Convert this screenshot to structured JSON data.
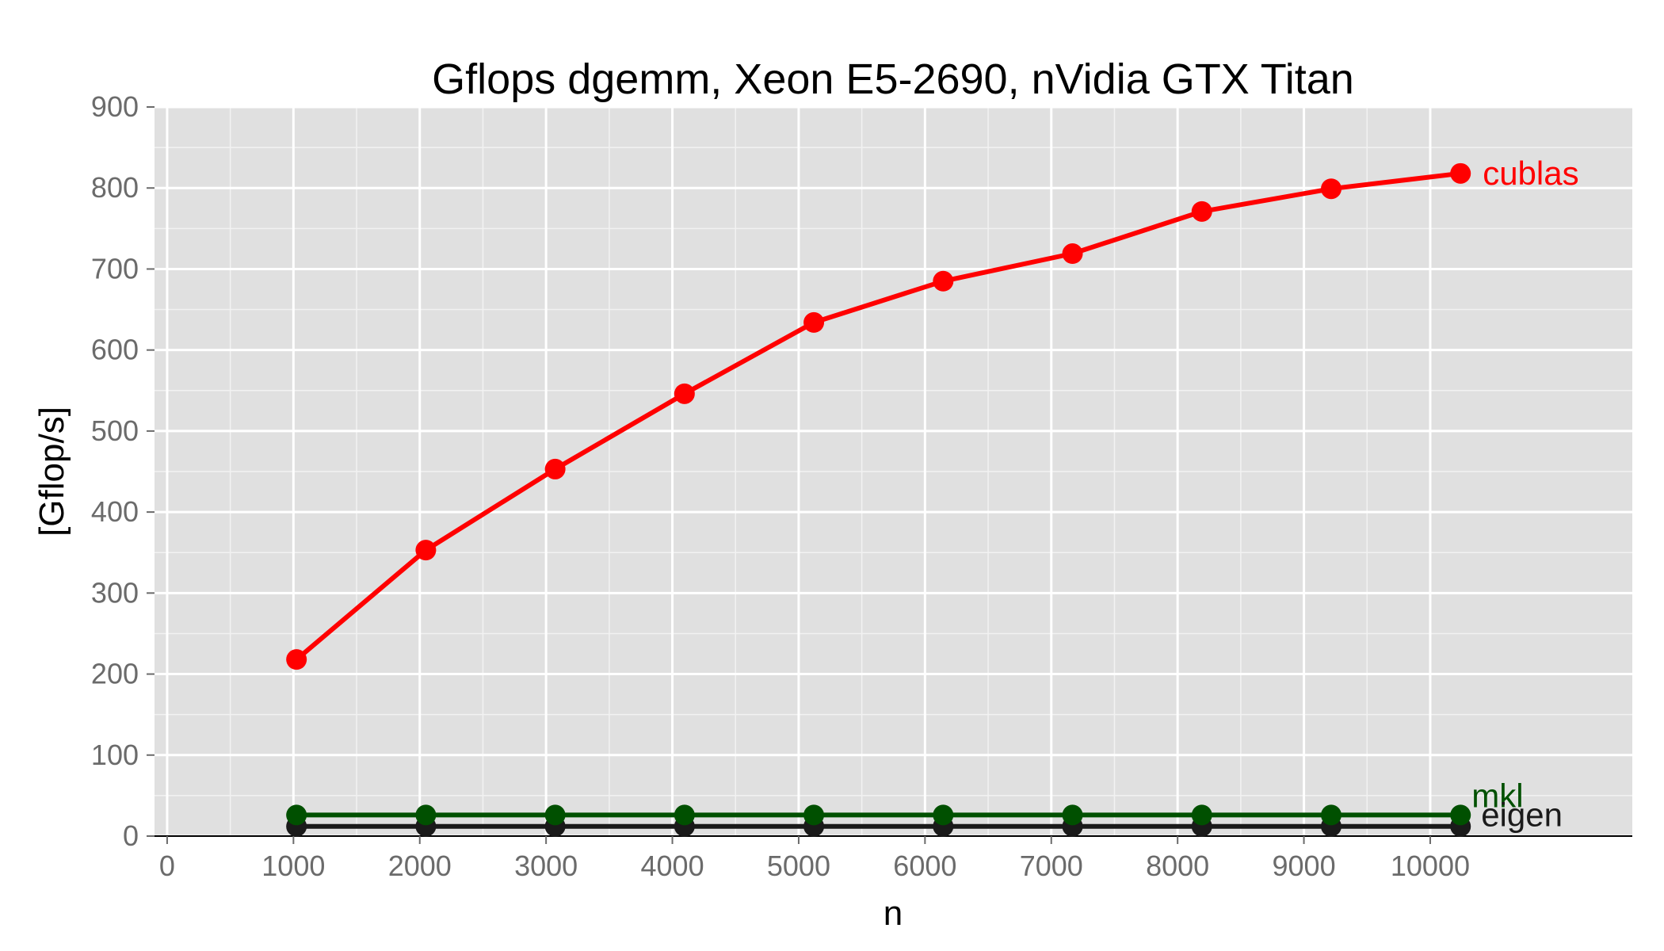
{
  "chart_data": {
    "type": "line",
    "title": "Gflops dgemm, Xeon E5-2690, nVidia GTX Titan",
    "xlabel": "n",
    "ylabel": "[Gflop/s]",
    "xlim": [
      -100,
      11600
    ],
    "ylim": [
      0,
      900
    ],
    "x_ticks": [
      0,
      1000,
      2000,
      3000,
      4000,
      5000,
      6000,
      7000,
      8000,
      9000,
      10000
    ],
    "y_ticks": [
      0,
      100,
      200,
      300,
      400,
      500,
      600,
      700,
      800,
      900
    ],
    "grid": true,
    "legend": "labels at line ends",
    "x": [
      1024,
      2048,
      3072,
      4096,
      5120,
      6144,
      7168,
      8192,
      9216,
      10240
    ],
    "series": [
      {
        "name": "cublas",
        "color": "#ff0000",
        "values": [
          218,
          353,
          453,
          546,
          634,
          685,
          719,
          771,
          799,
          818
        ]
      },
      {
        "name": "mkl",
        "color": "#005000",
        "values": [
          26,
          26,
          26,
          26,
          26,
          26,
          26,
          26,
          26,
          26
        ]
      },
      {
        "name": "eigen",
        "color": "#1a1a1a",
        "values": [
          12,
          12,
          12,
          12,
          12,
          12,
          12,
          12,
          12,
          12
        ]
      }
    ]
  }
}
